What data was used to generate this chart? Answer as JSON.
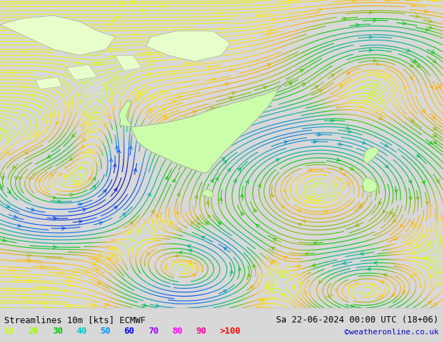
{
  "title_left": "Streamlines 10m [kts] ECMWF",
  "title_right": "Sa 22-06-2024 00:00 UTC (18+06)",
  "credit": "©weatheronline.co.uk",
  "legend_values": [
    "10",
    "20",
    "30",
    "40",
    "50",
    "60",
    "70",
    "80",
    "90",
    ">100"
  ],
  "legend_colors": [
    "#c8ff00",
    "#96ff00",
    "#00c800",
    "#00c8c8",
    "#0096ff",
    "#0000ff",
    "#9600ff",
    "#ff00ff",
    "#ff0096",
    "#ff0000"
  ],
  "bg_color": "#d8d8d8",
  "ocean_color": "#e8e8e8",
  "land_color": "#ccffaa",
  "land_color2": "#e8ffcc",
  "border_color": "#999999",
  "figsize": [
    6.34,
    4.9
  ],
  "dpi": 100,
  "font_size_title": 9,
  "font_size_legend": 9,
  "font_size_credit": 8,
  "stream_color_low": "#c8ff00",
  "stream_color_mid": "#ffcc00",
  "stream_color_high": "#00cc00"
}
